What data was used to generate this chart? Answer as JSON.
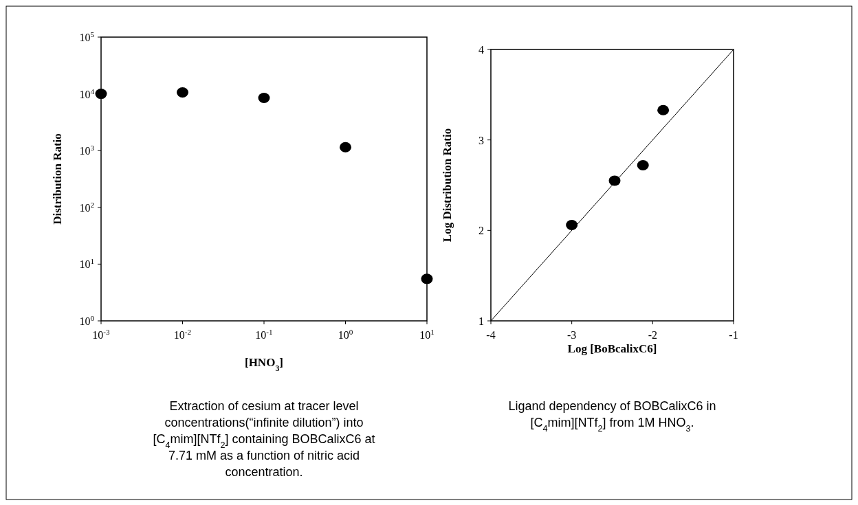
{
  "chart_data": [
    {
      "type": "scatter",
      "xlabel": "[HNO$_{3}$]",
      "ylabel": "Distribution Ratio",
      "log": "xy",
      "marker": "circle",
      "grid": false,
      "x": [
        0.001,
        0.01,
        0.1,
        1,
        10
      ],
      "values": [
        10000,
        10600,
        8500,
        1150,
        5.5
      ],
      "color": "#000000",
      "xlim": [
        0.001,
        10
      ],
      "ylim": [
        1,
        100000
      ],
      "xticks": [
        {
          "value": 0.001,
          "label": "10$^{-3}$"
        },
        {
          "value": 0.01,
          "label": "10$^{-2}$"
        },
        {
          "value": 0.1,
          "label": "10$^{-1}$"
        },
        {
          "value": 1,
          "label": "10$^{0}$"
        },
        {
          "value": 10,
          "label": "10$^{1}$"
        }
      ],
      "yticks": [
        {
          "value": 1,
          "label": "10$^{0}$"
        },
        {
          "value": 10,
          "label": "10$^{1}$"
        },
        {
          "value": 100,
          "label": "10$^{2}$"
        },
        {
          "value": 1000,
          "label": "10$^{3}$"
        },
        {
          "value": 10000,
          "label": "10$^{4}$"
        },
        {
          "value": 100000,
          "label": "10$^{5}$"
        }
      ],
      "annotations": [
        "Extraction of cesium at tracer level concentrations(“infinite dilution”) into [C$_{4}$mim][NTf$_{2}$] containing BOBCalixC6 at 7.71 mM as a function of nitric acid concentration."
      ]
    },
    {
      "type": "scatter",
      "xlabel": "Log [BoBcalixC6]",
      "ylabel": "Log Distribution Ratio",
      "marker": "circle",
      "grid": false,
      "xlim": [
        -4,
        -1
      ],
      "ylim": [
        1,
        4
      ],
      "xticks": [
        -4,
        -3,
        -2,
        -1
      ],
      "yticks": [
        1,
        2,
        3,
        4
      ],
      "series": [
        {
          "color": "#000000",
          "x": [
            -3.0,
            -2.47,
            -2.12,
            -1.87
          ],
          "values": [
            2.06,
            2.55,
            2.72,
            3.33
          ]
        },
        {
          "type": "line",
          "color": "#000000",
          "marker": "none",
          "x": [
            -4,
            -1
          ],
          "values": [
            1,
            4
          ]
        }
      ],
      "annotations": [
        "Ligand dependency of BOBCalixC6 in [C$_{4}$mim][NTf$_{2}$] from 1M HNO$_{3}$."
      ]
    }
  ]
}
